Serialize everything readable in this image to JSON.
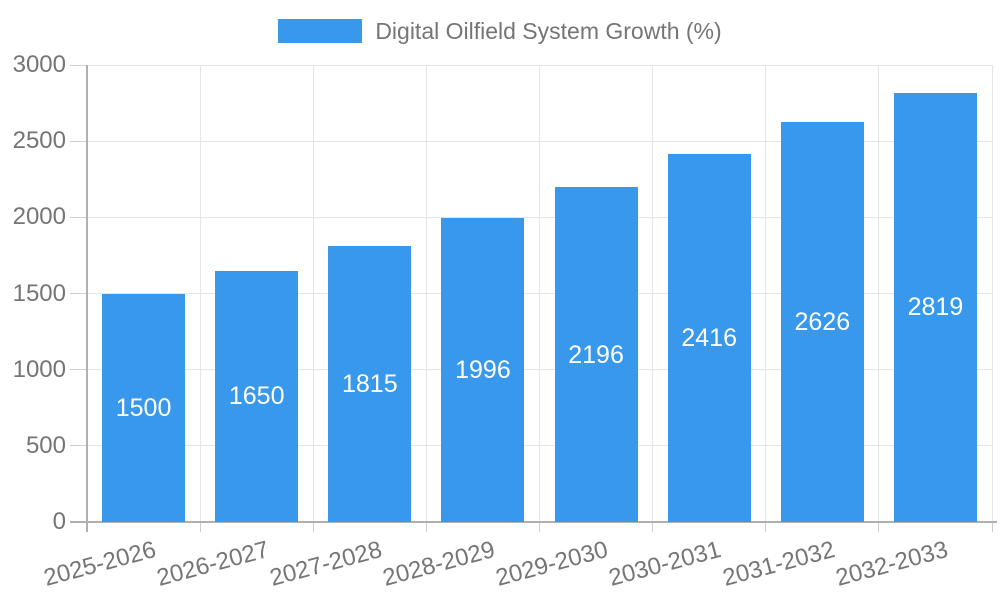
{
  "chart_data": {
    "type": "bar",
    "title": "Digital Oilfield System Growth (%)",
    "xlabel": "",
    "ylabel": "",
    "categories": [
      "2025-2026",
      "2026-2027",
      "2027-2028",
      "2028-2029",
      "2029-2030",
      "2030-2031",
      "2031-2032",
      "2032-2033"
    ],
    "series": [
      {
        "name": "Digital Oilfield System Growth (%)",
        "values": [
          1500,
          1650,
          1815,
          1996,
          2196,
          2416,
          2626,
          2819
        ]
      }
    ],
    "bar_value_labels": [
      "1500",
      "1650",
      "1815",
      "1996",
      "2196",
      "2416",
      "2626",
      "2819"
    ],
    "ylim": [
      0,
      3000
    ],
    "yticks": [
      0,
      500,
      1000,
      1500,
      2000,
      2500,
      3000
    ],
    "grid": true,
    "legend_position": "top-center",
    "x_tick_rotation_deg": -15,
    "colors": {
      "bar": "#3898ec",
      "bar_label": "#ffffff",
      "axis_text": "#757575",
      "legend_text": "#757575",
      "grid_line": "#e5e5e5",
      "tick_line": "#cfcfcf",
      "axis_line": "#b0b0b0",
      "background": "#ffffff"
    }
  }
}
